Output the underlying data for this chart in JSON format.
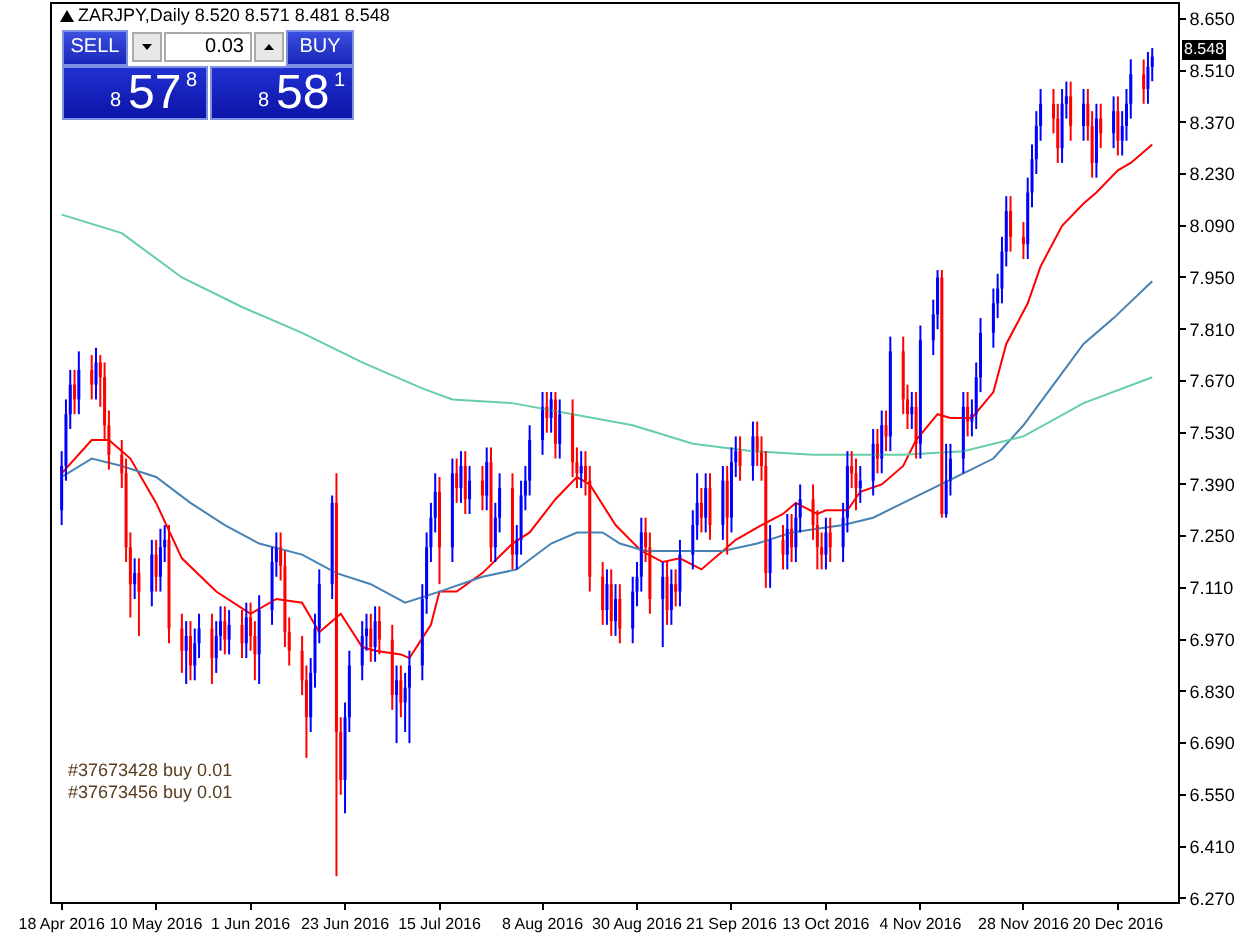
{
  "chart_data": {
    "type": "candlestick",
    "title": "ZARJPY,Daily 8.520 8.571 8.481 8.548",
    "x": [
      "2016-04-18",
      "2016-04-19",
      "2016-04-20",
      "2016-04-21",
      "2016-04-22",
      "2016-04-25",
      "2016-04-26",
      "2016-04-27",
      "2016-04-28",
      "2016-04-29",
      "2016-05-02",
      "2016-05-03",
      "2016-05-04",
      "2016-05-05",
      "2016-05-06",
      "2016-05-09",
      "2016-05-10",
      "2016-05-11",
      "2016-05-12",
      "2016-05-13",
      "2016-05-16",
      "2016-05-17",
      "2016-05-18",
      "2016-05-19",
      "2016-05-20",
      "2016-05-23",
      "2016-05-24",
      "2016-05-25",
      "2016-05-26",
      "2016-05-27",
      "2016-05-30",
      "2016-05-31",
      "2016-06-01",
      "2016-06-02",
      "2016-06-03",
      "2016-06-06",
      "2016-06-07",
      "2016-06-08",
      "2016-06-09",
      "2016-06-10",
      "2016-06-13",
      "2016-06-14",
      "2016-06-15",
      "2016-06-16",
      "2016-06-17",
      "2016-06-20",
      "2016-06-21",
      "2016-06-22",
      "2016-06-23",
      "2016-06-24",
      "2016-06-27",
      "2016-06-28",
      "2016-06-29",
      "2016-06-30",
      "2016-07-01",
      "2016-07-04",
      "2016-07-05",
      "2016-07-06",
      "2016-07-07",
      "2016-07-08",
      "2016-07-11",
      "2016-07-12",
      "2016-07-13",
      "2016-07-14",
      "2016-07-15",
      "2016-07-18",
      "2016-07-19",
      "2016-07-20",
      "2016-07-21",
      "2016-07-22",
      "2016-07-25",
      "2016-07-26",
      "2016-07-27",
      "2016-07-28",
      "2016-07-29",
      "2016-08-01",
      "2016-08-02",
      "2016-08-03",
      "2016-08-04",
      "2016-08-05",
      "2016-08-08",
      "2016-08-09",
      "2016-08-10",
      "2016-08-11",
      "2016-08-12",
      "2016-08-15",
      "2016-08-16",
      "2016-08-17",
      "2016-08-18",
      "2016-08-19",
      "2016-08-22",
      "2016-08-23",
      "2016-08-24",
      "2016-08-25",
      "2016-08-26",
      "2016-08-29",
      "2016-08-30",
      "2016-08-31",
      "2016-09-01",
      "2016-09-02",
      "2016-09-05",
      "2016-09-06",
      "2016-09-07",
      "2016-09-08",
      "2016-09-09",
      "2016-09-12",
      "2016-09-13",
      "2016-09-14",
      "2016-09-15",
      "2016-09-16",
      "2016-09-19",
      "2016-09-20",
      "2016-09-21",
      "2016-09-22",
      "2016-09-23",
      "2016-09-26",
      "2016-09-27",
      "2016-09-28",
      "2016-09-29",
      "2016-09-30",
      "2016-10-03",
      "2016-10-04",
      "2016-10-05",
      "2016-10-06",
      "2016-10-07",
      "2016-10-10",
      "2016-10-11",
      "2016-10-12",
      "2016-10-13",
      "2016-10-14",
      "2016-10-17",
      "2016-10-18",
      "2016-10-19",
      "2016-10-20",
      "2016-10-21",
      "2016-10-24",
      "2016-10-25",
      "2016-10-26",
      "2016-10-27",
      "2016-10-28",
      "2016-10-31",
      "2016-11-01",
      "2016-11-02",
      "2016-11-03",
      "2016-11-04",
      "2016-11-07",
      "2016-11-08",
      "2016-11-09",
      "2016-11-10",
      "2016-11-11",
      "2016-11-14",
      "2016-11-15",
      "2016-11-16",
      "2016-11-17",
      "2016-11-18",
      "2016-11-21",
      "2016-11-22",
      "2016-11-23",
      "2016-11-24",
      "2016-11-25",
      "2016-11-28",
      "2016-11-29",
      "2016-11-30",
      "2016-12-01",
      "2016-12-02",
      "2016-12-05",
      "2016-12-06",
      "2016-12-07",
      "2016-12-08",
      "2016-12-09",
      "2016-12-12",
      "2016-12-13",
      "2016-12-14",
      "2016-12-15",
      "2016-12-16",
      "2016-12-19",
      "2016-12-20",
      "2016-12-21",
      "2016-12-22",
      "2016-12-23",
      "2016-12-26",
      "2016-12-27",
      "2016-12-28"
    ],
    "ohlc": [
      [
        7.32,
        7.48,
        7.28,
        7.44
      ],
      [
        7.44,
        7.62,
        7.4,
        7.58
      ],
      [
        7.58,
        7.7,
        7.54,
        7.66
      ],
      [
        7.66,
        7.7,
        7.58,
        7.62
      ],
      [
        7.62,
        7.75,
        7.58,
        7.7
      ],
      [
        7.7,
        7.74,
        7.62,
        7.66
      ],
      [
        7.66,
        7.76,
        7.62,
        7.72
      ],
      [
        7.72,
        7.74,
        7.6,
        7.68
      ],
      [
        7.68,
        7.72,
        7.51,
        7.55
      ],
      [
        7.55,
        7.59,
        7.43,
        7.47
      ],
      [
        7.47,
        7.51,
        7.38,
        7.42
      ],
      [
        7.42,
        7.46,
        7.18,
        7.22
      ],
      [
        7.22,
        7.26,
        7.03,
        7.12
      ],
      [
        7.12,
        7.19,
        7.08,
        7.15
      ],
      [
        7.15,
        7.19,
        6.98,
        7.1
      ],
      [
        7.1,
        7.24,
        7.06,
        7.2
      ],
      [
        7.2,
        7.24,
        7.1,
        7.14
      ],
      [
        7.14,
        7.27,
        7.1,
        7.22
      ],
      [
        7.22,
        7.28,
        7.18,
        7.24
      ],
      [
        7.24,
        7.28,
        6.96,
        7.0
      ],
      [
        7.0,
        7.04,
        6.88,
        6.94
      ],
      [
        6.94,
        7.02,
        6.85,
        6.98
      ],
      [
        6.98,
        7.02,
        6.86,
        6.9
      ],
      [
        6.9,
        7.0,
        6.86,
        6.96
      ],
      [
        6.96,
        7.04,
        6.92,
        7.0
      ],
      [
        7.0,
        7.04,
        6.85,
        6.92
      ],
      [
        6.92,
        7.02,
        6.88,
        6.98
      ],
      [
        6.98,
        7.06,
        6.94,
        7.02
      ],
      [
        7.02,
        7.06,
        6.93,
        6.97
      ],
      [
        6.97,
        7.05,
        6.93,
        7.01
      ],
      [
        7.01,
        7.05,
        6.92,
        6.96
      ],
      [
        6.96,
        7.07,
        6.92,
        7.03
      ],
      [
        7.03,
        7.07,
        6.94,
        6.98
      ],
      [
        6.98,
        7.02,
        6.86,
        6.93
      ],
      [
        6.93,
        7.09,
        6.85,
        7.05
      ],
      [
        7.05,
        7.22,
        7.01,
        7.18
      ],
      [
        7.18,
        7.26,
        7.14,
        7.22
      ],
      [
        7.22,
        7.26,
        7.13,
        7.17
      ],
      [
        7.17,
        7.21,
        6.95,
        6.99
      ],
      [
        6.99,
        7.03,
        6.9,
        6.94
      ],
      [
        6.94,
        6.98,
        6.82,
        6.86
      ],
      [
        6.86,
        6.9,
        6.65,
        6.76
      ],
      [
        6.76,
        6.92,
        6.72,
        6.88
      ],
      [
        6.88,
        7.04,
        6.84,
        7.0
      ],
      [
        7.0,
        7.16,
        6.96,
        7.12
      ],
      [
        7.12,
        7.36,
        7.08,
        7.34
      ],
      [
        7.34,
        7.42,
        6.33,
        6.72
      ],
      [
        6.72,
        6.76,
        6.55,
        6.59
      ],
      [
        6.59,
        6.8,
        6.5,
        6.76
      ],
      [
        6.76,
        6.94,
        6.72,
        6.9
      ],
      [
        6.9,
        7.02,
        6.86,
        6.98
      ],
      [
        6.98,
        7.04,
        6.94,
        7.0
      ],
      [
        7.0,
        7.04,
        6.91,
        6.95
      ],
      [
        6.95,
        7.06,
        6.91,
        7.02
      ],
      [
        7.02,
        7.06,
        6.93,
        6.97
      ],
      [
        6.97,
        7.01,
        6.78,
        6.82
      ],
      [
        6.82,
        6.9,
        6.69,
        6.86
      ],
      [
        6.86,
        6.9,
        6.76,
        6.8
      ],
      [
        6.8,
        6.88,
        6.72,
        6.84
      ],
      [
        6.84,
        6.94,
        6.69,
        6.9
      ],
      [
        6.9,
        7.12,
        6.86,
        7.08
      ],
      [
        7.08,
        7.26,
        7.04,
        7.22
      ],
      [
        7.22,
        7.34,
        7.18,
        7.3
      ],
      [
        7.3,
        7.42,
        7.26,
        7.37
      ],
      [
        7.37,
        7.41,
        7.12,
        7.22
      ],
      [
        7.22,
        7.46,
        7.18,
        7.42
      ],
      [
        7.42,
        7.46,
        7.34,
        7.38
      ],
      [
        7.38,
        7.48,
        7.34,
        7.44
      ],
      [
        7.44,
        7.48,
        7.31,
        7.35
      ],
      [
        7.35,
        7.44,
        7.31,
        7.4
      ],
      [
        7.4,
        7.44,
        7.32,
        7.36
      ],
      [
        7.36,
        7.49,
        7.32,
        7.45
      ],
      [
        7.45,
        7.49,
        7.18,
        7.22
      ],
      [
        7.22,
        7.34,
        7.18,
        7.3
      ],
      [
        7.3,
        7.42,
        7.26,
        7.38
      ],
      [
        7.38,
        7.42,
        7.16,
        7.2
      ],
      [
        7.2,
        7.28,
        7.16,
        7.24
      ],
      [
        7.24,
        7.4,
        7.2,
        7.36
      ],
      [
        7.36,
        7.44,
        7.32,
        7.4
      ],
      [
        7.4,
        7.55,
        7.36,
        7.51
      ],
      [
        7.51,
        7.64,
        7.47,
        7.6
      ],
      [
        7.6,
        7.64,
        7.53,
        7.57
      ],
      [
        7.57,
        7.64,
        7.53,
        7.62
      ],
      [
        7.62,
        7.64,
        7.46,
        7.5
      ],
      [
        7.5,
        7.62,
        7.46,
        7.58
      ],
      [
        7.58,
        7.62,
        7.41,
        7.45
      ],
      [
        7.45,
        7.49,
        7.38,
        7.42
      ],
      [
        7.42,
        7.48,
        7.38,
        7.44
      ],
      [
        7.44,
        7.48,
        7.36,
        7.4
      ],
      [
        7.4,
        7.44,
        7.1,
        7.14
      ],
      [
        7.14,
        7.18,
        7.01,
        7.05
      ],
      [
        7.05,
        7.16,
        7.01,
        7.12
      ],
      [
        7.12,
        7.16,
        6.98,
        7.02
      ],
      [
        7.02,
        7.12,
        6.98,
        7.08
      ],
      [
        7.08,
        7.12,
        6.96,
        7.0
      ],
      [
        7.0,
        7.14,
        6.96,
        7.1
      ],
      [
        7.1,
        7.18,
        7.06,
        7.14
      ],
      [
        7.14,
        7.3,
        7.1,
        7.26
      ],
      [
        7.26,
        7.3,
        7.18,
        7.22
      ],
      [
        7.22,
        7.26,
        7.04,
        7.08
      ],
      [
        7.08,
        7.18,
        6.95,
        7.14
      ],
      [
        7.14,
        7.18,
        7.01,
        7.05
      ],
      [
        7.05,
        7.16,
        7.01,
        7.12
      ],
      [
        7.12,
        7.16,
        7.06,
        7.1
      ],
      [
        7.1,
        7.24,
        7.06,
        7.2
      ],
      [
        7.2,
        7.32,
        7.16,
        7.28
      ],
      [
        7.28,
        7.42,
        7.24,
        7.34
      ],
      [
        7.34,
        7.38,
        7.26,
        7.3
      ],
      [
        7.3,
        7.42,
        7.26,
        7.38
      ],
      [
        7.38,
        7.42,
        7.24,
        7.28
      ],
      [
        7.28,
        7.44,
        7.24,
        7.4
      ],
      [
        7.4,
        7.44,
        7.2,
        7.3
      ],
      [
        7.3,
        7.49,
        7.26,
        7.45
      ],
      [
        7.45,
        7.52,
        7.41,
        7.48
      ],
      [
        7.48,
        7.52,
        7.4,
        7.44
      ],
      [
        7.44,
        7.56,
        7.4,
        7.52
      ],
      [
        7.52,
        7.56,
        7.44,
        7.48
      ],
      [
        7.48,
        7.52,
        7.4,
        7.44
      ],
      [
        7.44,
        7.48,
        7.11,
        7.15
      ],
      [
        7.15,
        7.28,
        7.11,
        7.24
      ],
      [
        7.24,
        7.28,
        7.16,
        7.2
      ],
      [
        7.2,
        7.31,
        7.16,
        7.27
      ],
      [
        7.27,
        7.31,
        7.18,
        7.22
      ],
      [
        7.22,
        7.34,
        7.18,
        7.3
      ],
      [
        7.3,
        7.39,
        7.26,
        7.35
      ],
      [
        7.35,
        7.39,
        7.24,
        7.28
      ],
      [
        7.28,
        7.32,
        7.16,
        7.22
      ],
      [
        7.22,
        7.26,
        7.16,
        7.2
      ],
      [
        7.2,
        7.3,
        7.16,
        7.26
      ],
      [
        7.26,
        7.3,
        7.18,
        7.22
      ],
      [
        7.22,
        7.34,
        7.18,
        7.3
      ],
      [
        7.3,
        7.48,
        7.26,
        7.44
      ],
      [
        7.44,
        7.48,
        7.38,
        7.42
      ],
      [
        7.42,
        7.46,
        7.32,
        7.38
      ],
      [
        7.38,
        7.44,
        7.34,
        7.4
      ],
      [
        7.4,
        7.54,
        7.36,
        7.5
      ],
      [
        7.5,
        7.54,
        7.42,
        7.46
      ],
      [
        7.46,
        7.59,
        7.42,
        7.55
      ],
      [
        7.55,
        7.59,
        7.48,
        7.52
      ],
      [
        7.52,
        7.79,
        7.48,
        7.75
      ],
      [
        7.75,
        7.79,
        7.58,
        7.62
      ],
      [
        7.62,
        7.66,
        7.54,
        7.58
      ],
      [
        7.58,
        7.64,
        7.54,
        7.6
      ],
      [
        7.6,
        7.64,
        7.46,
        7.5
      ],
      [
        7.5,
        7.82,
        7.46,
        7.78
      ],
      [
        7.78,
        7.89,
        7.74,
        7.85
      ],
      [
        7.85,
        7.97,
        7.81,
        7.95
      ],
      [
        7.95,
        7.97,
        7.3,
        7.31
      ],
      [
        7.31,
        7.5,
        7.3,
        7.4
      ],
      [
        7.4,
        7.5,
        7.36,
        7.46
      ],
      [
        7.46,
        7.64,
        7.42,
        7.6
      ],
      [
        7.6,
        7.64,
        7.52,
        7.56
      ],
      [
        7.56,
        7.62,
        7.52,
        7.58
      ],
      [
        7.58,
        7.72,
        7.54,
        7.68
      ],
      [
        7.68,
        7.84,
        7.64,
        7.8
      ],
      [
        7.8,
        7.92,
        7.76,
        7.88
      ],
      [
        7.88,
        7.96,
        7.84,
        7.92
      ],
      [
        7.92,
        8.06,
        7.88,
        8.02
      ],
      [
        8.02,
        8.17,
        7.98,
        8.13
      ],
      [
        8.13,
        8.17,
        8.02,
        8.06
      ],
      [
        8.06,
        8.1,
        8.0,
        8.04
      ],
      [
        8.04,
        8.22,
        8.0,
        8.18
      ],
      [
        8.18,
        8.31,
        8.14,
        8.27
      ],
      [
        8.27,
        8.4,
        8.23,
        8.36
      ],
      [
        8.36,
        8.46,
        8.32,
        8.42
      ],
      [
        8.42,
        8.46,
        8.34,
        8.38
      ],
      [
        8.38,
        8.42,
        8.26,
        8.3
      ],
      [
        8.3,
        8.46,
        8.26,
        8.42
      ],
      [
        8.42,
        8.48,
        8.38,
        8.44
      ],
      [
        8.44,
        8.48,
        8.32,
        8.36
      ],
      [
        8.36,
        8.46,
        8.32,
        8.42
      ],
      [
        8.42,
        8.46,
        8.32,
        8.36
      ],
      [
        8.36,
        8.4,
        8.22,
        8.26
      ],
      [
        8.26,
        8.42,
        8.22,
        8.38
      ],
      [
        8.38,
        8.42,
        8.3,
        8.34
      ],
      [
        8.34,
        8.44,
        8.3,
        8.4
      ],
      [
        8.4,
        8.44,
        8.28,
        8.32
      ],
      [
        8.32,
        8.4,
        8.28,
        8.36
      ],
      [
        8.36,
        8.46,
        8.32,
        8.42
      ],
      [
        8.42,
        8.54,
        8.38,
        8.5
      ],
      [
        8.5,
        8.54,
        8.42,
        8.46
      ],
      [
        8.46,
        8.56,
        8.42,
        8.52
      ],
      [
        8.52,
        8.571,
        8.481,
        8.548
      ]
    ],
    "colors": [
      "#0000ff",
      "#0000ff",
      "#0000ff",
      "#ff0000",
      "#0000ff",
      "#ff0000",
      "#0000ff",
      "#ff0000",
      "#ff0000",
      "#ff0000",
      "#ff0000",
      "#ff0000",
      "#ff0000",
      "#0000ff",
      "#ff0000",
      "#0000ff",
      "#ff0000",
      "#0000ff",
      "#0000ff",
      "#ff0000",
      "#ff0000",
      "#0000ff",
      "#ff0000",
      "#0000ff",
      "#0000ff",
      "#ff0000",
      "#0000ff",
      "#0000ff",
      "#ff0000",
      "#0000ff",
      "#ff0000",
      "#0000ff",
      "#ff0000",
      "#ff0000",
      "#0000ff",
      "#0000ff",
      "#0000ff",
      "#ff0000",
      "#ff0000",
      "#ff0000",
      "#ff0000",
      "#ff0000",
      "#0000ff",
      "#0000ff",
      "#0000ff",
      "#0000ff",
      "#ff0000",
      "#ff0000",
      "#0000ff",
      "#0000ff",
      "#0000ff",
      "#0000ff",
      "#ff0000",
      "#0000ff",
      "#ff0000",
      "#ff0000",
      "#0000ff",
      "#ff0000",
      "#0000ff",
      "#0000ff",
      "#0000ff",
      "#0000ff",
      "#0000ff",
      "#0000ff",
      "#ff0000",
      "#0000ff",
      "#ff0000",
      "#0000ff",
      "#ff0000",
      "#0000ff",
      "#ff0000",
      "#0000ff",
      "#ff0000",
      "#0000ff",
      "#0000ff",
      "#ff0000",
      "#0000ff",
      "#0000ff",
      "#0000ff",
      "#0000ff",
      "#0000ff",
      "#ff0000",
      "#0000ff",
      "#ff0000",
      "#0000ff",
      "#ff0000",
      "#ff0000",
      "#0000ff",
      "#ff0000",
      "#ff0000",
      "#ff0000",
      "#0000ff",
      "#ff0000",
      "#0000ff",
      "#ff0000",
      "#0000ff",
      "#0000ff",
      "#0000ff",
      "#ff0000",
      "#ff0000",
      "#0000ff",
      "#ff0000",
      "#0000ff",
      "#ff0000",
      "#0000ff",
      "#0000ff",
      "#0000ff",
      "#ff0000",
      "#0000ff",
      "#ff0000",
      "#0000ff",
      "#ff0000",
      "#0000ff",
      "#0000ff",
      "#ff0000",
      "#0000ff",
      "#ff0000",
      "#ff0000",
      "#ff0000",
      "#0000ff",
      "#ff0000",
      "#0000ff",
      "#ff0000",
      "#0000ff",
      "#0000ff",
      "#ff0000",
      "#ff0000",
      "#ff0000",
      "#0000ff",
      "#ff0000",
      "#0000ff",
      "#0000ff",
      "#ff0000",
      "#ff0000",
      "#0000ff",
      "#0000ff",
      "#ff0000",
      "#0000ff",
      "#ff0000",
      "#0000ff",
      "#ff0000",
      "#ff0000",
      "#0000ff",
      "#ff0000",
      "#0000ff",
      "#0000ff",
      "#0000ff",
      "#ff0000",
      "#0000ff",
      "#0000ff",
      "#0000ff",
      "#ff0000",
      "#0000ff",
      "#0000ff",
      "#0000ff",
      "#0000ff",
      "#0000ff",
      "#0000ff",
      "#0000ff",
      "#ff0000",
      "#ff0000",
      "#0000ff",
      "#0000ff",
      "#0000ff",
      "#0000ff",
      "#ff0000",
      "#ff0000",
      "#0000ff",
      "#0000ff",
      "#ff0000",
      "#0000ff",
      "#ff0000",
      "#ff0000",
      "#0000ff",
      "#ff0000",
      "#0000ff",
      "#ff0000",
      "#0000ff",
      "#0000ff",
      "#0000ff",
      "#ff0000",
      "#0000ff",
      "#0000ff"
    ],
    "series": [
      {
        "type": "line",
        "color": "#ff0000",
        "x": [
          "2016-04-18",
          "2016-04-25",
          "2016-04-29",
          "2016-05-04",
          "2016-05-10",
          "2016-05-16",
          "2016-05-24",
          "2016-06-01",
          "2016-06-07",
          "2016-06-13",
          "2016-06-17",
          "2016-06-22",
          "2016-06-27",
          "2016-06-30",
          "2016-07-06",
          "2016-07-08",
          "2016-07-13",
          "2016-07-15",
          "2016-07-19",
          "2016-07-25",
          "2016-08-01",
          "2016-08-05",
          "2016-08-11",
          "2016-08-16",
          "2016-08-19",
          "2016-08-25",
          "2016-08-31",
          "2016-09-05",
          "2016-09-09",
          "2016-09-14",
          "2016-09-19",
          "2016-09-22",
          "2016-09-28",
          "2016-10-03",
          "2016-10-06",
          "2016-10-11",
          "2016-10-13",
          "2016-10-18",
          "2016-10-21",
          "2016-10-26",
          "2016-10-31",
          "2016-11-03",
          "2016-11-08",
          "2016-11-11",
          "2016-11-16",
          "2016-11-21",
          "2016-11-24",
          "2016-11-29",
          "2016-12-02",
          "2016-12-07",
          "2016-12-12",
          "2016-12-15",
          "2016-12-20",
          "2016-12-23",
          "2016-12-28"
        ],
        "values": [
          7.42,
          7.51,
          7.51,
          7.46,
          7.34,
          7.19,
          7.1,
          7.04,
          7.08,
          7.07,
          6.99,
          7.04,
          6.95,
          6.94,
          6.93,
          6.92,
          7.01,
          7.1,
          7.1,
          7.15,
          7.23,
          7.26,
          7.35,
          7.41,
          7.39,
          7.28,
          7.21,
          7.18,
          7.19,
          7.16,
          7.21,
          7.24,
          7.28,
          7.31,
          7.34,
          7.31,
          7.32,
          7.32,
          7.37,
          7.39,
          7.44,
          7.51,
          7.58,
          7.57,
          7.57,
          7.64,
          7.77,
          7.88,
          7.98,
          8.09,
          8.15,
          8.18,
          8.24,
          8.26,
          8.31
        ]
      },
      {
        "type": "line",
        "color": "#4682b4",
        "x": [
          "2016-04-18",
          "2016-04-25",
          "2016-05-02",
          "2016-05-10",
          "2016-05-18",
          "2016-05-26",
          "2016-06-03",
          "2016-06-13",
          "2016-06-21",
          "2016-06-29",
          "2016-07-07",
          "2016-07-15",
          "2016-07-25",
          "2016-08-02",
          "2016-08-10",
          "2016-08-16",
          "2016-08-22",
          "2016-08-26",
          "2016-09-01",
          "2016-09-09",
          "2016-09-19",
          "2016-09-27",
          "2016-10-05",
          "2016-10-11",
          "2016-10-17",
          "2016-10-24",
          "2016-10-31",
          "2016-11-07",
          "2016-11-14",
          "2016-11-21",
          "2016-11-28",
          "2016-12-05",
          "2016-12-12",
          "2016-12-19",
          "2016-12-28"
        ],
        "values": [
          7.41,
          7.46,
          7.44,
          7.41,
          7.34,
          7.28,
          7.23,
          7.2,
          7.15,
          7.12,
          7.07,
          7.1,
          7.14,
          7.16,
          7.23,
          7.26,
          7.26,
          7.23,
          7.21,
          7.21,
          7.21,
          7.23,
          7.26,
          7.27,
          7.28,
          7.3,
          7.34,
          7.38,
          7.42,
          7.46,
          7.55,
          7.66,
          7.77,
          7.84,
          7.94
        ]
      },
      {
        "type": "line",
        "color": "#66cdaa",
        "x": [
          "2016-04-18",
          "2016-05-02",
          "2016-05-16",
          "2016-05-30",
          "2016-06-13",
          "2016-06-27",
          "2016-07-11",
          "2016-07-18",
          "2016-08-01",
          "2016-08-15",
          "2016-08-29",
          "2016-09-12",
          "2016-09-26",
          "2016-10-10",
          "2016-10-17",
          "2016-10-31",
          "2016-11-14",
          "2016-11-28",
          "2016-12-12",
          "2016-12-28"
        ],
        "values": [
          8.12,
          8.07,
          7.95,
          7.87,
          7.8,
          7.72,
          7.65,
          7.62,
          7.61,
          7.58,
          7.55,
          7.5,
          7.48,
          7.47,
          7.47,
          7.47,
          7.48,
          7.52,
          7.61,
          7.68
        ]
      }
    ],
    "xlim": [
      "2016-04-15T18:00",
      "2017-01-03"
    ],
    "xticks": [
      {
        "value": "2016-04-18",
        "label": "18 Apr 2016"
      },
      {
        "value": "2016-05-10",
        "label": "10 May 2016"
      },
      {
        "value": "2016-06-01",
        "label": "1 Jun 2016"
      },
      {
        "value": "2016-06-23",
        "label": "23 Jun 2016"
      },
      {
        "value": "2016-07-15",
        "label": "15 Jul 2016"
      },
      {
        "value": "2016-08-08",
        "label": "8 Aug 2016"
      },
      {
        "value": "2016-08-30",
        "label": "30 Aug 2016"
      },
      {
        "value": "2016-09-21",
        "label": "21 Sep 2016"
      },
      {
        "value": "2016-10-13",
        "label": "13 Oct 2016"
      },
      {
        "value": "2016-11-04",
        "label": "4 Nov 2016"
      },
      {
        "value": "2016-11-28",
        "label": "28 Nov 2016"
      },
      {
        "value": "2016-12-20",
        "label": "20 Dec 2016"
      }
    ],
    "ylim": [
      6.26,
      8.69
    ],
    "yticks": [
      {
        "value": 6.27,
        "label": "6.270"
      },
      {
        "value": 6.41,
        "label": "6.410"
      },
      {
        "value": 6.55,
        "label": "6.550"
      },
      {
        "value": 6.69,
        "label": "6.690"
      },
      {
        "value": 6.83,
        "label": "6.830"
      },
      {
        "value": 6.97,
        "label": "6.970"
      },
      {
        "value": 7.11,
        "label": "7.110"
      },
      {
        "value": 7.25,
        "label": "7.250"
      },
      {
        "value": 7.39,
        "label": "7.390"
      },
      {
        "value": 7.53,
        "label": "7.530"
      },
      {
        "value": 7.67,
        "label": "7.670"
      },
      {
        "value": 7.81,
        "label": "7.810"
      },
      {
        "value": 7.95,
        "label": "7.950"
      },
      {
        "value": 8.09,
        "label": "8.090"
      },
      {
        "value": 8.23,
        "label": "8.230"
      },
      {
        "value": 8.37,
        "label": "8.370"
      },
      {
        "value": 8.51,
        "label": "8.510"
      },
      {
        "value": 8.65,
        "label": "8.650"
      }
    ],
    "annotations": [
      "#37673428 buy 0.01",
      "#37673456 buy 0.01",
      "SELL",
      "0.03",
      "BUY",
      "8",
      "57",
      "8",
      "8",
      "58",
      "1",
      "8.548"
    ],
    "grid": false
  }
}
